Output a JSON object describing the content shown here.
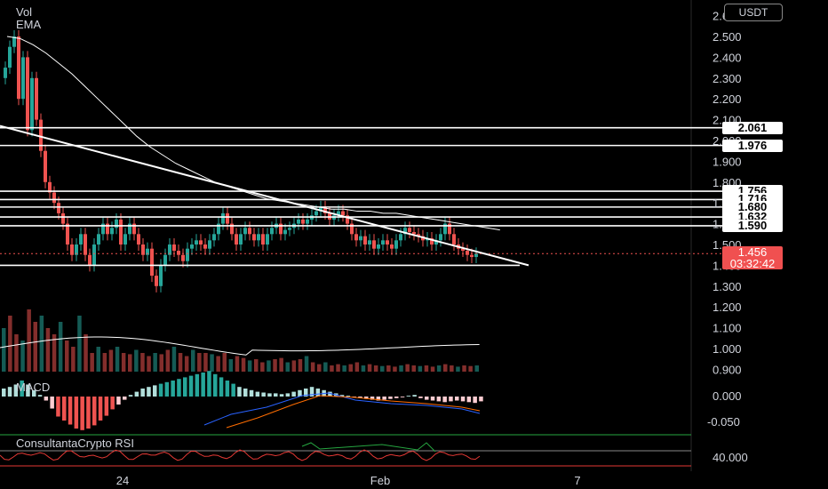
{
  "indicators": {
    "vol": "Vol",
    "ema": "EMA",
    "macd": "MACD",
    "rsi": "ConsultantaCrypto RSI"
  },
  "currency": "USDT",
  "price_label": {
    "value": "1.456",
    "countdown": "03:32:42"
  },
  "level_labels": [
    "2.061",
    "1.976",
    "1.756",
    "1.716",
    "1.680",
    "1.632",
    "1.590"
  ],
  "colors": {
    "up": "#26a69a",
    "down": "#ef5350",
    "line": "#ffffff",
    "price_box": "#f05050",
    "macd_line": "#2962ff",
    "signal_line": "#ff6d00",
    "rsi_line": "#e53935",
    "rsi_band": "#26a641"
  },
  "chart_data": {
    "type": "candlestick",
    "price_axis_ticks": [
      "2.600",
      "2.500",
      "2.400",
      "2.300",
      "2.200",
      "2.100",
      "2.000",
      "1.900",
      "1.800",
      "1.700",
      "1.600",
      "1.500",
      "1.400",
      "1.300",
      "1.200",
      "1.100",
      "1.000",
      "0.900"
    ],
    "macd_axis_ticks": [
      "0.000",
      "-0.050"
    ],
    "rsi_axis_ticks": [
      "40.000"
    ],
    "x_ticks": [
      "24",
      "Feb",
      "7"
    ],
    "horizontal_levels": [
      2.061,
      1.976,
      1.756,
      1.716,
      1.68,
      1.632,
      1.59,
      1.4
    ],
    "trendline": {
      "from": [
        0,
        2.07
      ],
      "to": [
        140,
        1.41
      ]
    },
    "candles_close": [
      2.35,
      2.45,
      2.5,
      2.2,
      2.4,
      2.05,
      2.3,
      2.1,
      1.95,
      1.8,
      1.75,
      1.7,
      1.65,
      1.6,
      1.5,
      1.45,
      1.5,
      1.55,
      1.45,
      1.4,
      1.5,
      1.55,
      1.6,
      1.55,
      1.58,
      1.62,
      1.5,
      1.55,
      1.6,
      1.55,
      1.5,
      1.45,
      1.48,
      1.35,
      1.3,
      1.4,
      1.45,
      1.5,
      1.47,
      1.45,
      1.42,
      1.48,
      1.5,
      1.52,
      1.5,
      1.48,
      1.52,
      1.55,
      1.6,
      1.65,
      1.6,
      1.55,
      1.5,
      1.55,
      1.58,
      1.55,
      1.52,
      1.55,
      1.5,
      1.55,
      1.58,
      1.6,
      1.55,
      1.57,
      1.58,
      1.6,
      1.62,
      1.6,
      1.62,
      1.64,
      1.66,
      1.68,
      1.65,
      1.62,
      1.64,
      1.66,
      1.64,
      1.6,
      1.55,
      1.52,
      1.54,
      1.5,
      1.52,
      1.48,
      1.5,
      1.52,
      1.5,
      1.48,
      1.52,
      1.55,
      1.58,
      1.56,
      1.55,
      1.54,
      1.52,
      1.53,
      1.5,
      1.52,
      1.55,
      1.6,
      1.55,
      1.5,
      1.48,
      1.47,
      1.45,
      1.44,
      1.456
    ],
    "ema_values": [
      2.5,
      2.49,
      2.46,
      2.42,
      2.37,
      2.32,
      2.26,
      2.2,
      2.14,
      2.08,
      2.02,
      1.97,
      1.93,
      1.89,
      1.86,
      1.83,
      1.8,
      1.78,
      1.76,
      1.74,
      1.72,
      1.71,
      1.7,
      1.69,
      1.68,
      1.67,
      1.67,
      1.66,
      1.66,
      1.65,
      1.65,
      1.64,
      1.63,
      1.62,
      1.61,
      1.6,
      1.59,
      1.58,
      1.57
    ],
    "volume": [
      0.7,
      0.9,
      0.6,
      0.5,
      1.0,
      0.8,
      0.9,
      0.7,
      0.6,
      0.8,
      0.5,
      0.4,
      0.9,
      0.6,
      0.3,
      0.4,
      0.3,
      0.35,
      0.4,
      0.3,
      0.28,
      0.35,
      0.3,
      0.25,
      0.3,
      0.28,
      0.35,
      0.4,
      0.3,
      0.25,
      0.35,
      0.3,
      0.3,
      0.28,
      0.25,
      0.3,
      0.2,
      0.25,
      0.22,
      0.18,
      0.2,
      0.15,
      0.18,
      0.2,
      0.22,
      0.15,
      0.18,
      0.2,
      0.25,
      0.15,
      0.12,
      0.15,
      0.1,
      0.12,
      0.1,
      0.12,
      0.15,
      0.1,
      0.12,
      0.1,
      0.09,
      0.1,
      0.08,
      0.1,
      0.12,
      0.1,
      0.09,
      0.1,
      0.08,
      0.1,
      0.12,
      0.1,
      0.08,
      0.1,
      0.09,
      0.1
    ],
    "macd_hist": [
      0.01,
      0.012,
      0.015,
      0.02,
      0.015,
      0.008,
      0.002,
      -0.005,
      -0.015,
      -0.025,
      -0.03,
      -0.035,
      -0.04,
      -0.042,
      -0.04,
      -0.036,
      -0.03,
      -0.024,
      -0.016,
      -0.01,
      -0.004,
      0.002,
      0.006,
      0.01,
      0.012,
      0.014,
      0.016,
      0.018,
      0.02,
      0.022,
      0.024,
      0.026,
      0.028,
      0.03,
      0.032,
      0.028,
      0.024,
      0.02,
      0.016,
      0.012,
      0.01,
      0.008,
      0.006,
      0.005,
      0.004,
      0.004,
      0.003,
      0.004,
      0.006,
      0.008,
      0.01,
      0.012,
      0.01,
      0.008,
      0.006,
      0.004,
      0.002,
      0.001,
      -0.001,
      -0.002,
      -0.003,
      -0.004,
      -0.005,
      -0.004,
      -0.003,
      -0.002,
      -0.001,
      0.001,
      0.002,
      -0.002,
      -0.004,
      -0.005,
      -0.006,
      -0.007,
      -0.006,
      -0.005,
      -0.006,
      -0.007,
      -0.008,
      -0.006
    ]
  }
}
